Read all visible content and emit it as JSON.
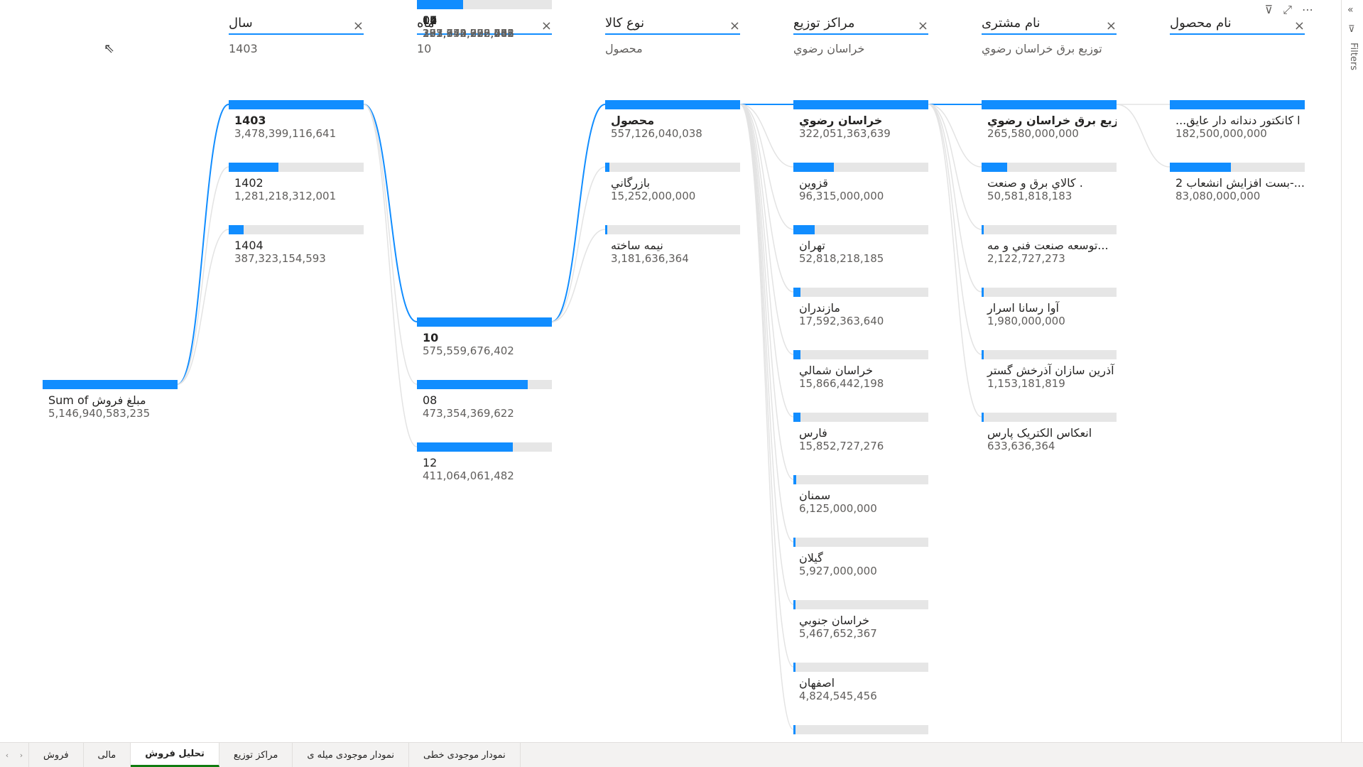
{
  "root": {
    "label": "Sum of مبلغ فروش",
    "value": "5,146,940,583,235",
    "fraction": 1.0
  },
  "columns": [
    {
      "title": "سال",
      "selected": "1403",
      "nodes": [
        {
          "label": "1403",
          "value": "3,478,399,116,641",
          "fraction": 1.0,
          "selected": true
        },
        {
          "label": "1402",
          "value": "1,281,218,312,001",
          "fraction": 0.37
        },
        {
          "label": "1404",
          "value": "387,323,154,593",
          "fraction": 0.11
        }
      ]
    },
    {
      "title": "ماه",
      "selected": "10",
      "nodes": [
        {
          "label": "10",
          "value": "575,559,676,402",
          "fraction": 1.0,
          "selected": true
        },
        {
          "label": "08",
          "value": "473,354,369,622",
          "fraction": 0.82
        },
        {
          "label": "12",
          "value": "411,064,061,482",
          "fraction": 0.71
        },
        {
          "label": "11",
          "value": "351,752,998,208",
          "fraction": 0.61
        },
        {
          "label": "05",
          "value": "302,640,752,471",
          "fraction": 0.53
        },
        {
          "label": "09",
          "value": "275,653,286,746",
          "fraction": 0.48
        },
        {
          "label": "07",
          "value": "233,952,320,612",
          "fraction": 0.41
        },
        {
          "label": "03",
          "value": "222,190,663,515",
          "fraction": 0.39,
          "faded": true
        },
        {
          "label": "06",
          "value": "203,770,372,563",
          "fraction": 0.35
        },
        {
          "label": "02",
          "value": "197,344,006,085",
          "fraction": 0.34
        },
        {
          "label": "04",
          "value": "",
          "fraction": 0.34
        }
      ]
    },
    {
      "title": "نوع کالا",
      "selected": "محصول",
      "nodes": [
        {
          "label": "محصول",
          "value": "557,126,040,038",
          "fraction": 1.0,
          "selected": true
        },
        {
          "label": "بازرگاني",
          "value": "15,252,000,000",
          "fraction": 0.03
        },
        {
          "label": "نيمه ساخته",
          "value": "3,181,636,364",
          "fraction": 0.006
        }
      ]
    },
    {
      "title": "مراکز توزیع",
      "selected": "خراسان رضوي",
      "nodes": [
        {
          "label": "خراسان رضوي",
          "value": "322,051,363,639",
          "fraction": 1.0,
          "selected": true
        },
        {
          "label": "قزوين",
          "value": "96,315,000,000",
          "fraction": 0.3
        },
        {
          "label": "تهران",
          "value": "52,818,218,185",
          "fraction": 0.16
        },
        {
          "label": "مازندران",
          "value": "17,592,363,640",
          "fraction": 0.055
        },
        {
          "label": "خراسان شمالي",
          "value": "15,866,442,198",
          "fraction": 0.05
        },
        {
          "label": "فارس",
          "value": "15,852,727,276",
          "fraction": 0.05
        },
        {
          "label": "سمنان",
          "value": "6,125,000,000",
          "fraction": 0.02
        },
        {
          "label": "گيلان",
          "value": "5,927,000,000",
          "fraction": 0.018
        },
        {
          "label": "خراسان جنوبي",
          "value": "5,467,652,367",
          "fraction": 0.017
        },
        {
          "label": "اصفهان",
          "value": "4,824,545,456",
          "fraction": 0.015
        },
        {
          "label": "",
          "value": "",
          "fraction": 0.015
        }
      ]
    },
    {
      "title": "نام مشتری",
      "selected": "توزیع برق خراسان رضوي",
      "nodes": [
        {
          "label": "توزيع برق خراسان رضوي",
          "value": "265,580,000,000",
          "fraction": 1.0,
          "selected": true
        },
        {
          "label": "كالاي برق و صنعت .",
          "value": "50,581,818,183",
          "fraction": 0.19
        },
        {
          "label": "توسعه صنعت فني و مه...",
          "value": "2,122,727,273",
          "fraction": 0.01
        },
        {
          "label": "آوا رسانا اسرار",
          "value": "1,980,000,000",
          "fraction": 0.008
        },
        {
          "label": "آذرين سازان آذرخش گستر",
          "value": "1,153,181,819",
          "fraction": 0.005
        },
        {
          "label": "انعكاس الكتريک پارس",
          "value": "633,636,364",
          "fraction": 0.003
        }
      ]
    },
    {
      "title": "نام محصول",
      "selected": "",
      "nodes": [
        {
          "label": "...ا كانكتور دندانه دار عايق",
          "value": "182,500,000,000",
          "fraction": 1.0
        },
        {
          "label": "بست افزايش انشعاب 2-...",
          "value": "83,080,000,000",
          "fraction": 0.45
        }
      ]
    }
  ],
  "tabs": [
    {
      "label": "فروش",
      "active": false
    },
    {
      "label": "مالی",
      "active": false
    },
    {
      "label": "تحلیل فروش",
      "active": true
    },
    {
      "label": "مراکز توزیع",
      "active": false
    },
    {
      "label": "نمودار موجودی میله ی",
      "active": false
    },
    {
      "label": "نمودار موجودی خطی",
      "active": false
    }
  ],
  "filters_label": "Filters",
  "icons": {
    "close": "×",
    "filter": "⊽",
    "focus": "⤢",
    "more": "⋯",
    "collapse": "«",
    "cursor": "⇖",
    "tab_prev": "‹",
    "tab_next": "›"
  },
  "colors": {
    "accent": "#118dff",
    "track": "#e6e6e6",
    "active_tab": "#107c10"
  }
}
